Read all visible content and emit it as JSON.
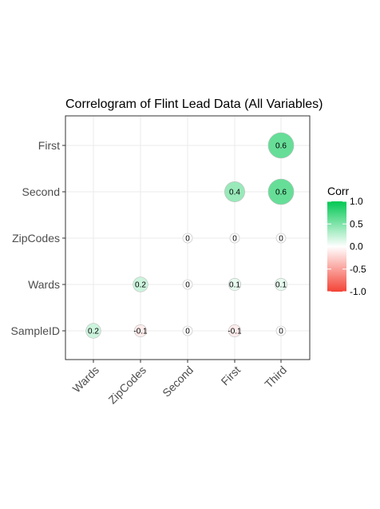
{
  "chart_data": {
    "type": "heatmap",
    "subtype": "correlogram-circles",
    "title": "Correlogram of Flint Lead Data (All Variables)",
    "xlabel": "",
    "ylabel": "",
    "x_categories": [
      "Wards",
      "ZipCodes",
      "Second",
      "First",
      "Third"
    ],
    "y_categories": [
      "SampleID",
      "Wards",
      "ZipCodes",
      "Second",
      "First"
    ],
    "cells": [
      {
        "x": "Wards",
        "y": "SampleID",
        "value": 0.2,
        "label": "0.2"
      },
      {
        "x": "ZipCodes",
        "y": "SampleID",
        "value": -0.1,
        "label": "-0.1"
      },
      {
        "x": "Second",
        "y": "SampleID",
        "value": 0,
        "label": "0"
      },
      {
        "x": "First",
        "y": "SampleID",
        "value": -0.1,
        "label": "-0.1"
      },
      {
        "x": "Third",
        "y": "SampleID",
        "value": 0,
        "label": "0"
      },
      {
        "x": "ZipCodes",
        "y": "Wards",
        "value": 0.2,
        "label": "0.2"
      },
      {
        "x": "Second",
        "y": "Wards",
        "value": 0,
        "label": "0"
      },
      {
        "x": "First",
        "y": "Wards",
        "value": 0.1,
        "label": "0.1"
      },
      {
        "x": "Third",
        "y": "Wards",
        "value": 0.1,
        "label": "0.1"
      },
      {
        "x": "Second",
        "y": "ZipCodes",
        "value": 0,
        "label": "0"
      },
      {
        "x": "First",
        "y": "ZipCodes",
        "value": 0,
        "label": "0"
      },
      {
        "x": "Third",
        "y": "ZipCodes",
        "value": 0,
        "label": "0"
      },
      {
        "x": "First",
        "y": "Second",
        "value": 0.4,
        "label": "0.4"
      },
      {
        "x": "Third",
        "y": "Second",
        "value": 0.6,
        "label": "0.6"
      },
      {
        "x": "Third",
        "y": "First",
        "value": 0.6,
        "label": "0.6"
      }
    ],
    "legend": {
      "title": "Corr",
      "placement": "right",
      "ticks": [
        "1.0",
        "0.5",
        "0.0",
        "-0.5",
        "-1.0"
      ],
      "tick_values": [
        1.0,
        0.5,
        0.0,
        -0.5,
        -1.0
      ],
      "range": [
        -1,
        1
      ]
    },
    "colors": {
      "high": "#00c853",
      "mid": "#ffffff",
      "low": "#f44336",
      "panel_border": "#333333",
      "grid": "#ebebeb",
      "circle_outline": "#bdbdbd"
    },
    "grid": true
  }
}
